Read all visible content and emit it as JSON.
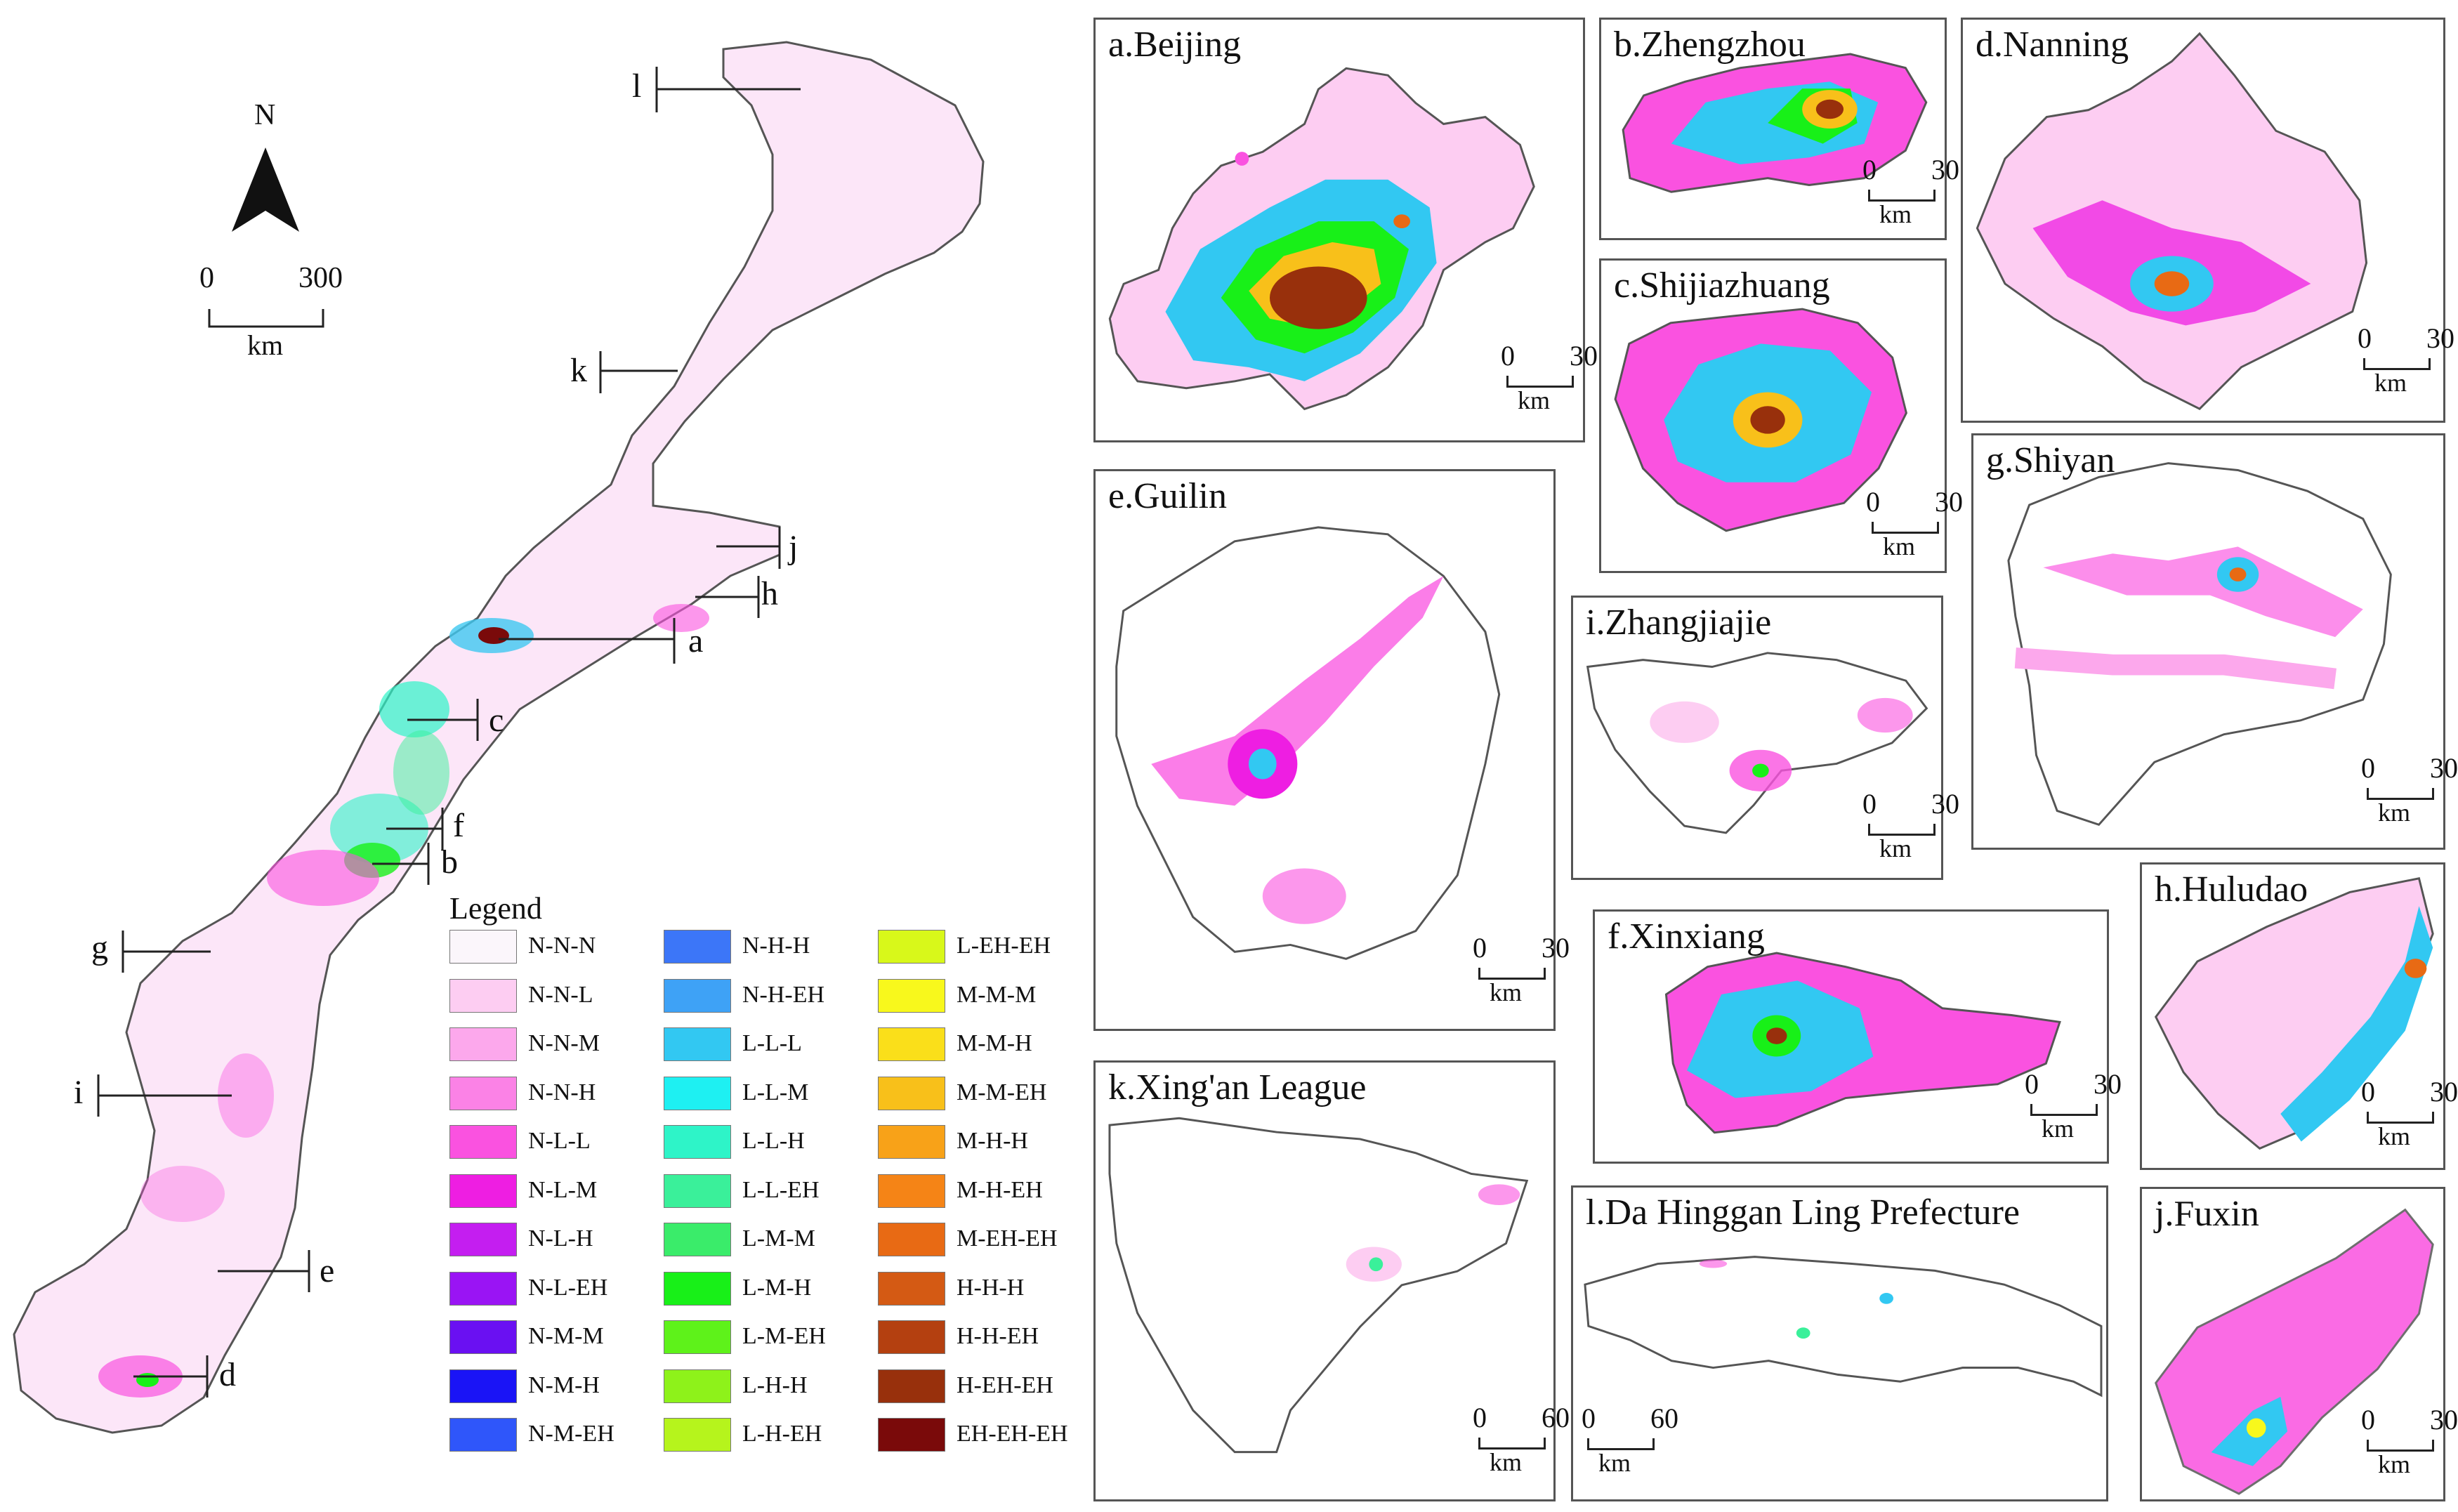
{
  "north_arrow": {
    "label": "N"
  },
  "main_scale": {
    "zero": "0",
    "max": "300",
    "unit": "km"
  },
  "callouts": [
    "l",
    "k",
    "j",
    "h",
    "a",
    "c",
    "f",
    "b",
    "g",
    "i",
    "e",
    "d"
  ],
  "legend": {
    "title": "Legend",
    "items": [
      {
        "label": "N-N-N",
        "color": "#fbf6fb"
      },
      {
        "label": "N-N-L",
        "color": "#fdcdf2"
      },
      {
        "label": "N-N-M",
        "color": "#fca8ec"
      },
      {
        "label": "N-N-H",
        "color": "#fb82e6"
      },
      {
        "label": "N-L-L",
        "color": "#fa52e0"
      },
      {
        "label": "N-L-M",
        "color": "#ee1ee2"
      },
      {
        "label": "N-L-H",
        "color": "#c41ef0"
      },
      {
        "label": "N-L-EH",
        "color": "#9a14f4"
      },
      {
        "label": "N-M-M",
        "color": "#6a10f2"
      },
      {
        "label": "N-M-H",
        "color": "#1a14f6"
      },
      {
        "label": "N-M-EH",
        "color": "#2f56fa"
      },
      {
        "label": "N-H-H",
        "color": "#3c76f8"
      },
      {
        "label": "N-H-EH",
        "color": "#3ea2f6"
      },
      {
        "label": "L-L-L",
        "color": "#32c8f2"
      },
      {
        "label": "L-L-M",
        "color": "#1ef0f2"
      },
      {
        "label": "L-L-H",
        "color": "#2ef4c8"
      },
      {
        "label": "L-L-EH",
        "color": "#3af09a"
      },
      {
        "label": "L-M-M",
        "color": "#3aec6a"
      },
      {
        "label": "L-M-H",
        "color": "#18f018"
      },
      {
        "label": "L-M-EH",
        "color": "#5ef21a"
      },
      {
        "label": "L-H-H",
        "color": "#8ef21a"
      },
      {
        "label": "L-H-EH",
        "color": "#b6f41c"
      },
      {
        "label": "L-EH-EH",
        "color": "#d8f81a"
      },
      {
        "label": "M-M-M",
        "color": "#f8f81c"
      },
      {
        "label": "M-M-H",
        "color": "#fadf1a"
      },
      {
        "label": "M-M-EH",
        "color": "#f8c01a"
      },
      {
        "label": "M-H-H",
        "color": "#f8a218"
      },
      {
        "label": "M-H-EH",
        "color": "#f58416"
      },
      {
        "label": "M-EH-EH",
        "color": "#e86a14"
      },
      {
        "label": "H-H-H",
        "color": "#d45a14"
      },
      {
        "label": "H-H-EH",
        "color": "#b44010"
      },
      {
        "label": "H-EH-EH",
        "color": "#98300c"
      },
      {
        "label": "EH-EH-EH",
        "color": "#7a0a0a"
      }
    ]
  },
  "panels": {
    "a": {
      "title": "a.Beijing",
      "scale_zero": "0",
      "scale_max": "30",
      "unit": "km"
    },
    "b": {
      "title": "b.Zhengzhou",
      "scale_zero": "0",
      "scale_max": "30",
      "unit": "km"
    },
    "c": {
      "title": "c.Shijiazhuang",
      "scale_zero": "0",
      "scale_max": "30",
      "unit": "km"
    },
    "d": {
      "title": "d.Nanning",
      "scale_zero": "0",
      "scale_max": "30",
      "unit": "km"
    },
    "e": {
      "title": "e.Guilin",
      "scale_zero": "0",
      "scale_max": "30",
      "unit": "km"
    },
    "f": {
      "title": "f.Xinxiang",
      "scale_zero": "0",
      "scale_max": "30",
      "unit": "km"
    },
    "g": {
      "title": "g.Shiyan",
      "scale_zero": "0",
      "scale_max": "30",
      "unit": "km"
    },
    "h": {
      "title": "h.Huludao",
      "scale_zero": "0",
      "scale_max": "30",
      "unit": "km"
    },
    "i": {
      "title": "i.Zhangjiajie",
      "scale_zero": "0",
      "scale_max": "30",
      "unit": "km"
    },
    "j": {
      "title": "j.Fuxin",
      "scale_zero": "0",
      "scale_max": "30",
      "unit": "km"
    },
    "k": {
      "title": "k.Xing'an League",
      "scale_zero": "0",
      "scale_max": "60",
      "unit": "km"
    },
    "l": {
      "title": "l.Da Hinggan Ling Prefecture",
      "scale_zero": "0",
      "scale_max": "60",
      "unit": "km"
    }
  }
}
